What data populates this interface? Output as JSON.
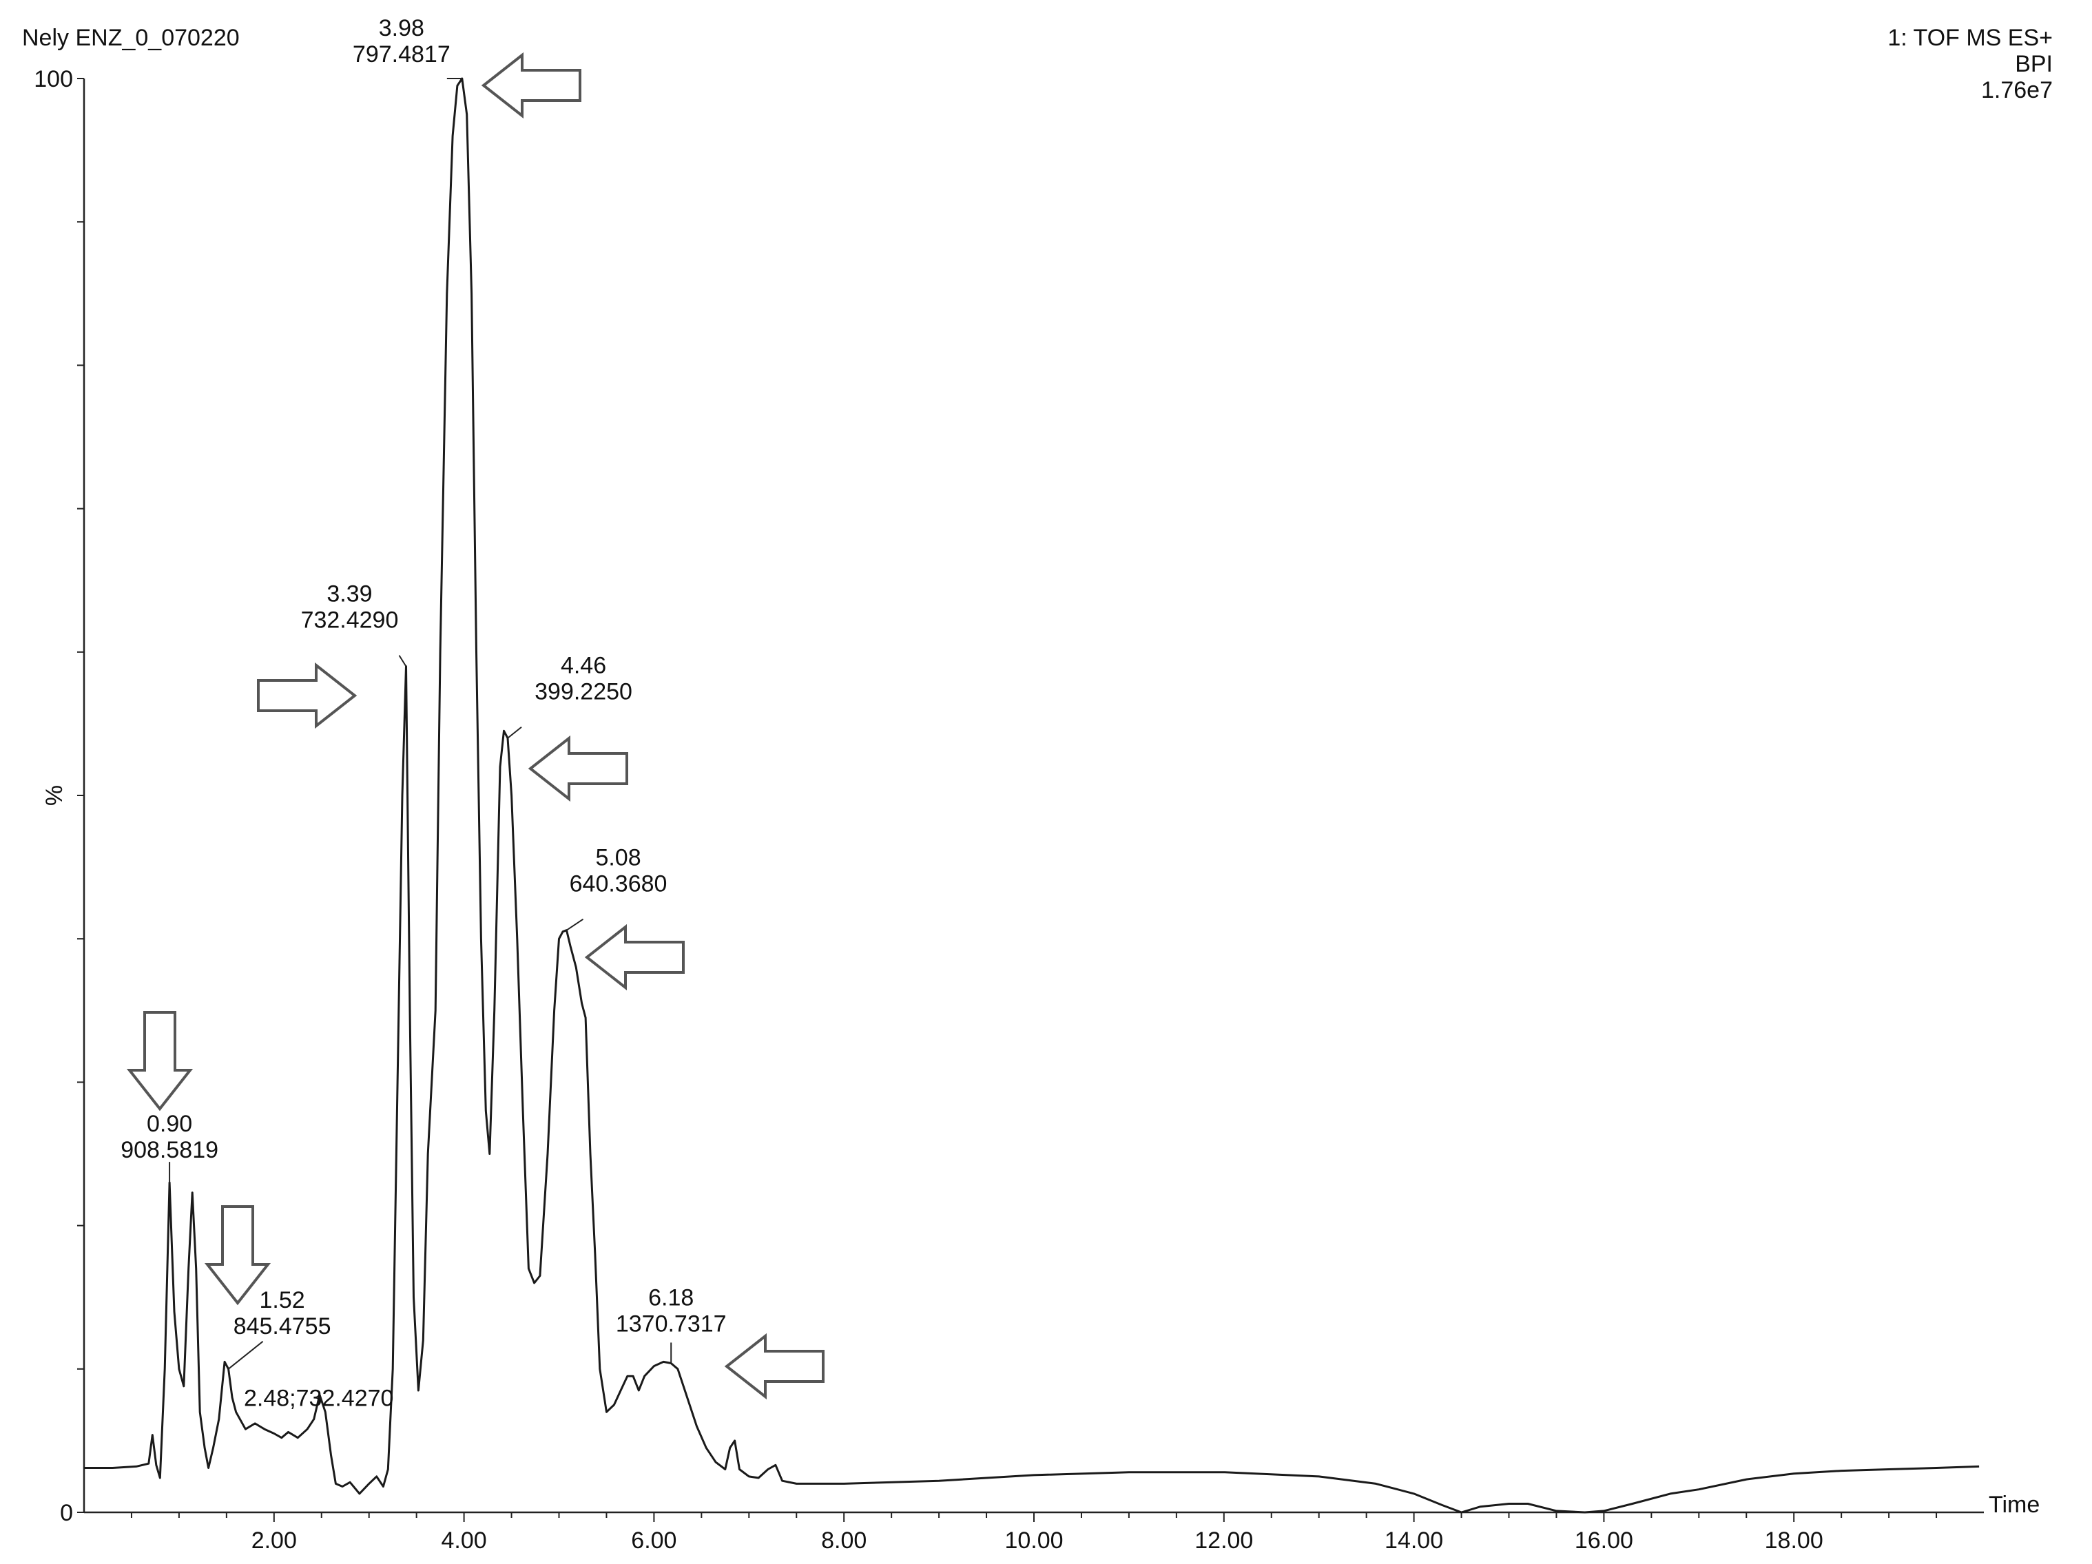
{
  "header": {
    "left_title": "Nely ENZ_0_070220",
    "right_line1": "1: TOF MS ES+",
    "right_line2": "BPI",
    "right_line3": "1.76e7"
  },
  "chart_data": {
    "type": "line",
    "xlabel": "Time",
    "ylabel": "%",
    "xlim": [
      0,
      20
    ],
    "ylim": [
      0,
      100
    ],
    "x_ticks": [
      "2.00",
      "4.00",
      "6.00",
      "8.00",
      "10.00",
      "12.00",
      "14.00",
      "16.00",
      "18.00"
    ],
    "y_tick_labels": [
      "0",
      "100"
    ],
    "series": [
      {
        "name": "",
        "color": "#1a1a1a",
        "points": [
          [
            0.0,
            3.1
          ],
          [
            0.3,
            3.1
          ],
          [
            0.55,
            3.2
          ],
          [
            0.68,
            3.4
          ],
          [
            0.72,
            5.4
          ],
          [
            0.76,
            3.3
          ],
          [
            0.8,
            2.4
          ],
          [
            0.85,
            10.0
          ],
          [
            0.9,
            23.0
          ],
          [
            0.95,
            14.0
          ],
          [
            1.0,
            10.0
          ],
          [
            1.05,
            8.8
          ],
          [
            1.1,
            17.0
          ],
          [
            1.14,
            22.3
          ],
          [
            1.18,
            17.0
          ],
          [
            1.22,
            7.0
          ],
          [
            1.27,
            4.5
          ],
          [
            1.31,
            3.1
          ],
          [
            1.36,
            4.5
          ],
          [
            1.42,
            6.5
          ],
          [
            1.48,
            10.5
          ],
          [
            1.52,
            10.0
          ],
          [
            1.56,
            8.0
          ],
          [
            1.6,
            7.0
          ],
          [
            1.7,
            5.8
          ],
          [
            1.8,
            6.2
          ],
          [
            1.9,
            5.8
          ],
          [
            2.0,
            5.5
          ],
          [
            2.08,
            5.2
          ],
          [
            2.15,
            5.6
          ],
          [
            2.25,
            5.2
          ],
          [
            2.35,
            5.8
          ],
          [
            2.42,
            6.5
          ],
          [
            2.48,
            8.2
          ],
          [
            2.54,
            7.0
          ],
          [
            2.6,
            4.0
          ],
          [
            2.65,
            2.0
          ],
          [
            2.72,
            1.8
          ],
          [
            2.8,
            2.1
          ],
          [
            2.9,
            1.3
          ],
          [
            3.0,
            2.0
          ],
          [
            3.08,
            2.5
          ],
          [
            3.15,
            1.8
          ],
          [
            3.2,
            3.0
          ],
          [
            3.25,
            10.0
          ],
          [
            3.3,
            30.0
          ],
          [
            3.35,
            50.0
          ],
          [
            3.39,
            59.0
          ],
          [
            3.43,
            35.0
          ],
          [
            3.47,
            15.0
          ],
          [
            3.52,
            8.5
          ],
          [
            3.57,
            12.0
          ],
          [
            3.62,
            25.0
          ],
          [
            3.66,
            30.0
          ],
          [
            3.7,
            35.0
          ],
          [
            3.75,
            60.0
          ],
          [
            3.82,
            85.0
          ],
          [
            3.88,
            96.0
          ],
          [
            3.93,
            99.5
          ],
          [
            3.98,
            100.0
          ],
          [
            4.03,
            97.5
          ],
          [
            4.08,
            85.0
          ],
          [
            4.13,
            60.0
          ],
          [
            4.18,
            40.0
          ],
          [
            4.23,
            28.0
          ],
          [
            4.27,
            25.0
          ],
          [
            4.32,
            35.0
          ],
          [
            4.38,
            52.0
          ],
          [
            4.42,
            54.5
          ],
          [
            4.46,
            54.0
          ],
          [
            4.5,
            50.0
          ],
          [
            4.56,
            40.0
          ],
          [
            4.62,
            28.0
          ],
          [
            4.68,
            17.0
          ],
          [
            4.74,
            16.0
          ],
          [
            4.8,
            16.5
          ],
          [
            4.88,
            25.0
          ],
          [
            4.95,
            35.0
          ],
          [
            5.0,
            40.0
          ],
          [
            5.04,
            40.5
          ],
          [
            5.08,
            40.6
          ],
          [
            5.12,
            39.5
          ],
          [
            5.18,
            38.0
          ],
          [
            5.24,
            35.5
          ],
          [
            5.28,
            34.5
          ],
          [
            5.33,
            25.0
          ],
          [
            5.38,
            18.0
          ],
          [
            5.43,
            10.0
          ],
          [
            5.5,
            7.0
          ],
          [
            5.58,
            7.5
          ],
          [
            5.65,
            8.5
          ],
          [
            5.72,
            9.5
          ],
          [
            5.78,
            9.5
          ],
          [
            5.84,
            8.5
          ],
          [
            5.9,
            9.5
          ],
          [
            6.0,
            10.2
          ],
          [
            6.1,
            10.5
          ],
          [
            6.18,
            10.4
          ],
          [
            6.25,
            10.0
          ],
          [
            6.35,
            8.0
          ],
          [
            6.45,
            6.0
          ],
          [
            6.55,
            4.5
          ],
          [
            6.65,
            3.5
          ],
          [
            6.75,
            3.0
          ],
          [
            6.8,
            4.5
          ],
          [
            6.85,
            5.0
          ],
          [
            6.9,
            3.0
          ],
          [
            7.0,
            2.5
          ],
          [
            7.1,
            2.4
          ],
          [
            7.2,
            3.0
          ],
          [
            7.28,
            3.3
          ],
          [
            7.35,
            2.2
          ],
          [
            7.5,
            2.0
          ],
          [
            8.0,
            2.0
          ],
          [
            9.0,
            2.2
          ],
          [
            10.0,
            2.6
          ],
          [
            11.0,
            2.8
          ],
          [
            12.0,
            2.8
          ],
          [
            13.0,
            2.5
          ],
          [
            13.6,
            2.0
          ],
          [
            14.0,
            1.3
          ],
          [
            14.3,
            0.5
          ],
          [
            14.5,
            0.0
          ],
          [
            14.7,
            0.4
          ],
          [
            15.0,
            0.6
          ],
          [
            15.2,
            0.6
          ],
          [
            15.5,
            0.1
          ],
          [
            15.8,
            0.0
          ],
          [
            16.0,
            0.1
          ],
          [
            16.3,
            0.6
          ],
          [
            16.7,
            1.3
          ],
          [
            17.0,
            1.6
          ],
          [
            17.5,
            2.3
          ],
          [
            18.0,
            2.7
          ],
          [
            18.5,
            2.9
          ],
          [
            19.0,
            3.0
          ],
          [
            19.5,
            3.1
          ],
          [
            19.95,
            3.2
          ]
        ]
      }
    ],
    "peak_labels": [
      {
        "rt": "0.90",
        "mz": "908.5819",
        "x": 0.9,
        "y": 23.0
      },
      {
        "rt": "1.52",
        "mz": "845.4755",
        "x": 1.52,
        "y": 10.0
      },
      {
        "rt": "2.48;732.4270",
        "mz": "",
        "x": 2.48,
        "y": 8.2
      },
      {
        "rt": "3.39",
        "mz": "732.4290",
        "x": 3.39,
        "y": 59.0
      },
      {
        "rt": "3.98",
        "mz": "797.4817",
        "x": 3.98,
        "y": 100.0
      },
      {
        "rt": "4.46",
        "mz": "399.2250",
        "x": 4.46,
        "y": 54.0
      },
      {
        "rt": "5.08",
        "mz": "640.3680",
        "x": 5.08,
        "y": 40.6
      },
      {
        "rt": "6.18",
        "mz": "1370.7317",
        "x": 6.18,
        "y": 10.4
      }
    ],
    "arrows": [
      {
        "peak": "0.90",
        "direction": "down"
      },
      {
        "peak": "1.52",
        "direction": "down"
      },
      {
        "peak": "3.39",
        "direction": "right"
      },
      {
        "peak": "3.98",
        "direction": "left"
      },
      {
        "peak": "4.46",
        "direction": "left"
      },
      {
        "peak": "5.08",
        "direction": "left"
      },
      {
        "peak": "6.18",
        "direction": "left"
      }
    ]
  }
}
